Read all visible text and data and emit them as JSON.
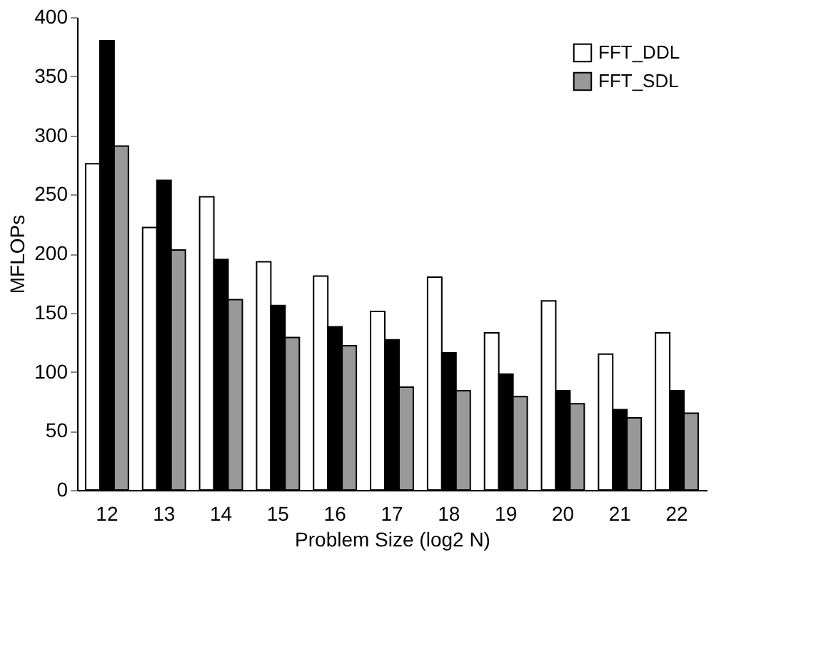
{
  "chart_data": {
    "type": "bar",
    "xlabel": "Problem Size (log2 N)",
    "ylabel": "MFLOPs",
    "categories": [
      "12",
      "13",
      "14",
      "15",
      "16",
      "17",
      "18",
      "19",
      "20",
      "21",
      "22"
    ],
    "series": [
      {
        "name": "FFT_DDL",
        "color": "#ffffff",
        "values": [
          276,
          222,
          248,
          193,
          181,
          151,
          180,
          133,
          160,
          115,
          133
        ]
      },
      {
        "color": "#000000",
        "values": [
          380,
          262,
          195,
          156,
          138,
          127,
          116,
          98,
          84,
          68,
          84
        ]
      },
      {
        "name": "FFT_SDL",
        "color": "#999999",
        "values": [
          291,
          203,
          161,
          129,
          122,
          87,
          84,
          79,
          73,
          61,
          65
        ]
      }
    ],
    "ylim": [
      0,
      400
    ],
    "yticks": [
      0,
      50,
      100,
      150,
      200,
      250,
      300,
      350,
      400
    ],
    "grid": false,
    "legend": "top right"
  }
}
